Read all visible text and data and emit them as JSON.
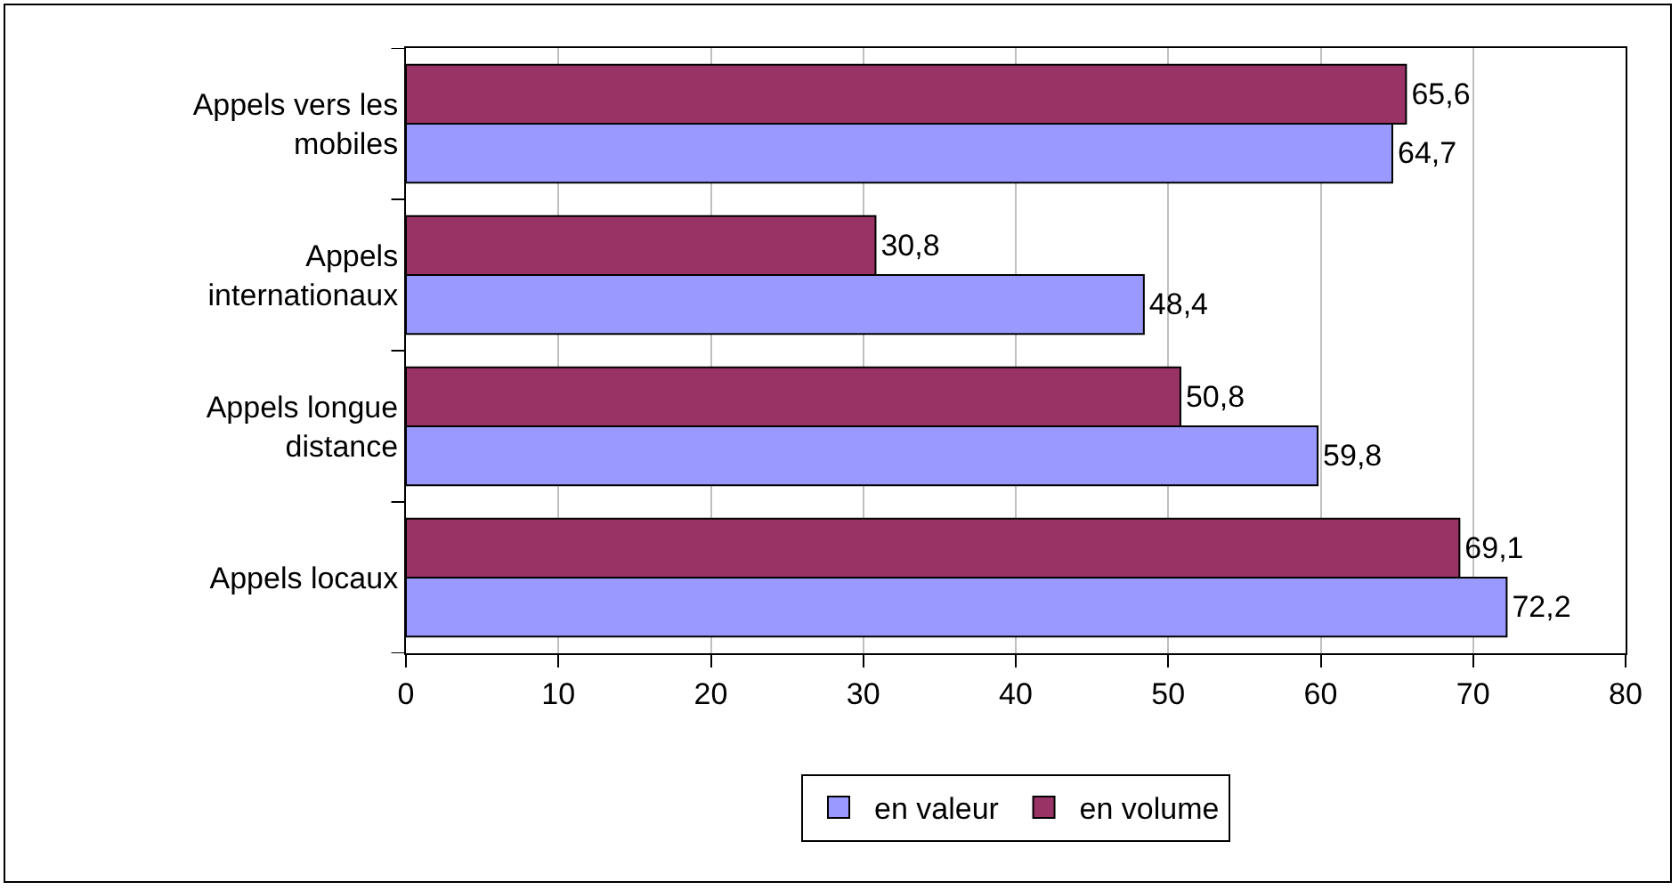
{
  "chart_data": {
    "type": "bar",
    "orientation": "horizontal",
    "categories": [
      "Appels vers les mobiles",
      "Appels internationaux",
      "Appels longue distance",
      "Appels locaux"
    ],
    "series": [
      {
        "name": "en valeur",
        "color": "#9999ff",
        "values": [
          64.7,
          48.4,
          59.8,
          72.2
        ],
        "value_labels": [
          "64,7",
          "48,4",
          "59,8",
          "72,2"
        ]
      },
      {
        "name": "en volume",
        "color": "#993366",
        "values": [
          65.6,
          30.8,
          50.8,
          69.1
        ],
        "value_labels": [
          "65,6",
          "30,8",
          "50,8",
          "69,1"
        ]
      }
    ],
    "xlim": [
      0,
      80
    ],
    "xticks": [
      0,
      10,
      20,
      30,
      40,
      50,
      60,
      70,
      80
    ],
    "grid": "x",
    "legend": "bottom"
  }
}
